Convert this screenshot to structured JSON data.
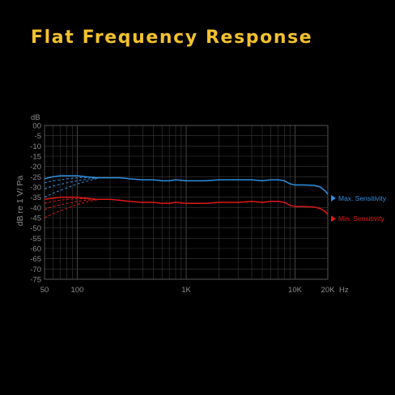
{
  "title": "Flat Frequency Response",
  "chart_data": {
    "type": "line",
    "title": "",
    "ylabel": "dB re 1 V/ Pa",
    "yunit": "dB",
    "xunit": "Hz",
    "xscale": "log",
    "xlim": [
      50,
      20000
    ],
    "ylim": [
      -75,
      0
    ],
    "grid": true,
    "legend_position": "right",
    "yticks": [
      0,
      -5,
      -10,
      -15,
      -20,
      -25,
      -30,
      -35,
      -40,
      -45,
      -50,
      -55,
      -60,
      -65,
      -70,
      -75
    ],
    "ytick_labels": [
      "00",
      "-5",
      "-10",
      "-15",
      "-20",
      "-25",
      "-30",
      "-35",
      "-40",
      "-45",
      "-50",
      "-55",
      "-60",
      "-65",
      "-70",
      "-75"
    ],
    "xticks": [
      50,
      100,
      1000,
      10000,
      20000
    ],
    "xtick_labels": [
      "50",
      "100",
      "1K",
      "10K",
      "20K"
    ],
    "series": [
      {
        "name": "Max. Sensitivity",
        "color": "#2f8fe0",
        "x": [
          50,
          60,
          70,
          80,
          100,
          120,
          150,
          180,
          200,
          250,
          300,
          400,
          500,
          600,
          700,
          800,
          1000,
          1500,
          2000,
          3000,
          4000,
          5000,
          6000,
          7000,
          8000,
          9000,
          10000,
          12000,
          15000,
          17000,
          19000,
          20000
        ],
        "y": [
          -26,
          -25,
          -24.5,
          -24.5,
          -24.5,
          -25,
          -25.5,
          -25.5,
          -25.5,
          -25.5,
          -26,
          -26.5,
          -26.5,
          -27,
          -27,
          -26.5,
          -27,
          -27,
          -26.5,
          -26.5,
          -26.5,
          -27,
          -26.5,
          -26.5,
          -27,
          -28.5,
          -29,
          -29,
          -29.2,
          -30,
          -32,
          -33.5
        ]
      },
      {
        "name": "Min. Sensitivity",
        "color": "#e01818",
        "x": [
          50,
          60,
          70,
          80,
          100,
          120,
          150,
          180,
          200,
          250,
          300,
          400,
          500,
          600,
          700,
          800,
          1000,
          1500,
          2000,
          3000,
          4000,
          5000,
          6000,
          7000,
          8000,
          9000,
          10000,
          12000,
          15000,
          17000,
          19000,
          20000
        ],
        "y": [
          -36,
          -35.5,
          -35,
          -35,
          -35,
          -35.5,
          -36,
          -36,
          -36,
          -36.5,
          -37,
          -37.5,
          -37.5,
          -38,
          -38,
          -37.5,
          -38,
          -38,
          -37.5,
          -37.5,
          -37,
          -37.5,
          -37,
          -37,
          -37.5,
          -39,
          -39.5,
          -39.5,
          -39.8,
          -40.5,
          -42,
          -43.5
        ]
      }
    ],
    "rolloff_series": [
      {
        "color": "#2f8fe0",
        "curves": [
          {
            "x": [
              50,
              60,
              80,
              100,
              130,
              160
            ],
            "y": [
              -28,
              -27,
              -26,
              -25.5,
              -25.3,
              -25.5
            ]
          },
          {
            "x": [
              50,
              60,
              80,
              100,
              130,
              160
            ],
            "y": [
              -31,
              -29.5,
              -28,
              -27,
              -26,
              -25.5
            ]
          },
          {
            "x": [
              50,
              60,
              80,
              100,
              130,
              160
            ],
            "y": [
              -35,
              -33,
              -30.5,
              -28.5,
              -26.8,
              -25.5
            ]
          }
        ]
      },
      {
        "color": "#e01818",
        "curves": [
          {
            "x": [
              50,
              60,
              80,
              100,
              130,
              160
            ],
            "y": [
              -38,
              -37,
              -36,
              -35.7,
              -35.8,
              -36
            ]
          },
          {
            "x": [
              50,
              60,
              80,
              100,
              130,
              160
            ],
            "y": [
              -41,
              -39.5,
              -38,
              -37,
              -36.3,
              -36
            ]
          },
          {
            "x": [
              50,
              60,
              80,
              100,
              130,
              160
            ],
            "y": [
              -45,
              -43,
              -40.5,
              -38.5,
              -37,
              -36
            ]
          }
        ]
      }
    ]
  }
}
